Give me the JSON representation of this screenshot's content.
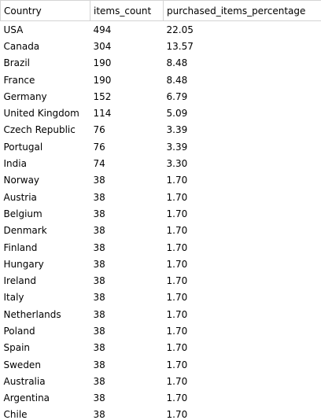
{
  "columns": [
    "Country",
    "items_count",
    "purchased_items_percentage"
  ],
  "rows": [
    [
      "USA",
      "494",
      "22.05"
    ],
    [
      "Canada",
      "304",
      "13.57"
    ],
    [
      "Brazil",
      "190",
      "8.48"
    ],
    [
      "France",
      "190",
      "8.48"
    ],
    [
      "Germany",
      "152",
      "6.79"
    ],
    [
      "United Kingdom",
      "114",
      "5.09"
    ],
    [
      "Czech Republic",
      "76",
      "3.39"
    ],
    [
      "Portugal",
      "76",
      "3.39"
    ],
    [
      "India",
      "74",
      "3.30"
    ],
    [
      "Norway",
      "38",
      "1.70"
    ],
    [
      "Austria",
      "38",
      "1.70"
    ],
    [
      "Belgium",
      "38",
      "1.70"
    ],
    [
      "Denmark",
      "38",
      "1.70"
    ],
    [
      "Finland",
      "38",
      "1.70"
    ],
    [
      "Hungary",
      "38",
      "1.70"
    ],
    [
      "Ireland",
      "38",
      "1.70"
    ],
    [
      "Italy",
      "38",
      "1.70"
    ],
    [
      "Netherlands",
      "38",
      "1.70"
    ],
    [
      "Poland",
      "38",
      "1.70"
    ],
    [
      "Spain",
      "38",
      "1.70"
    ],
    [
      "Sweden",
      "38",
      "1.70"
    ],
    [
      "Australia",
      "38",
      "1.70"
    ],
    [
      "Argentina",
      "38",
      "1.70"
    ],
    [
      "Chile",
      "38",
      "1.70"
    ]
  ]
}
